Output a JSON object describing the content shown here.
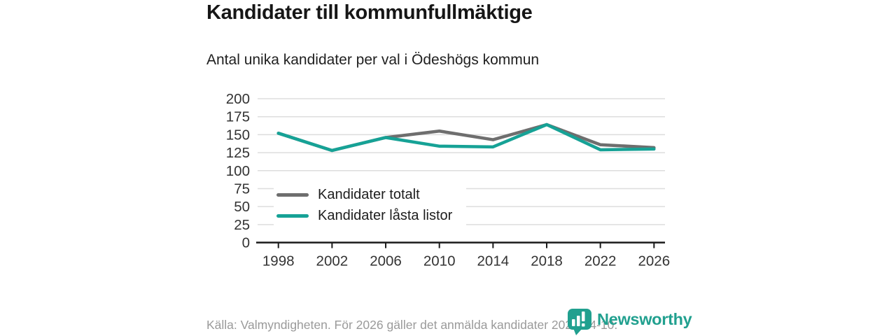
{
  "title": "Kandidater till kommunfullmäktige",
  "subtitle": "Antal unika kandidater per val i Ödeshögs kommun",
  "footer": {
    "source_note": "Källa: Valmyndigheten. För 2026 gäller det anmälda kandidater 2026-04-10."
  },
  "logo": {
    "text": "Newsworthy",
    "icon": "newsworthy-speech-bubble-barchart-icon",
    "color": "#21a08f"
  },
  "colors": {
    "accent_teal": "#16a296",
    "series_gray": "#6e6e6e",
    "gridline": "#dddddd",
    "axis": "#1a1a1a",
    "tick_label": "#333333",
    "footer_text": "#9a9a9a"
  },
  "chart_data": {
    "type": "line",
    "title": "Kandidater till kommunfullmäktige",
    "subtitle": "Antal unika kandidater per val i Ödeshögs kommun",
    "categories": [
      "1998",
      "2002",
      "2006",
      "2010",
      "2014",
      "2018",
      "2022",
      "2026"
    ],
    "series": [
      {
        "name": "Kandidater totalt",
        "color": "#6e6e6e",
        "values": [
          152,
          128,
          146,
          155,
          143,
          164,
          136,
          132
        ]
      },
      {
        "name": "Kandidater låsta listor",
        "color": "#16a296",
        "values": [
          152,
          128,
          146,
          134,
          133,
          164,
          129,
          130
        ]
      }
    ],
    "xlabel": "",
    "ylabel": "",
    "ylim": [
      0,
      200
    ],
    "yticks": [
      0,
      25,
      50,
      75,
      100,
      125,
      150,
      175,
      200
    ],
    "grid": true,
    "legend_position": "inside-bottom-left"
  }
}
